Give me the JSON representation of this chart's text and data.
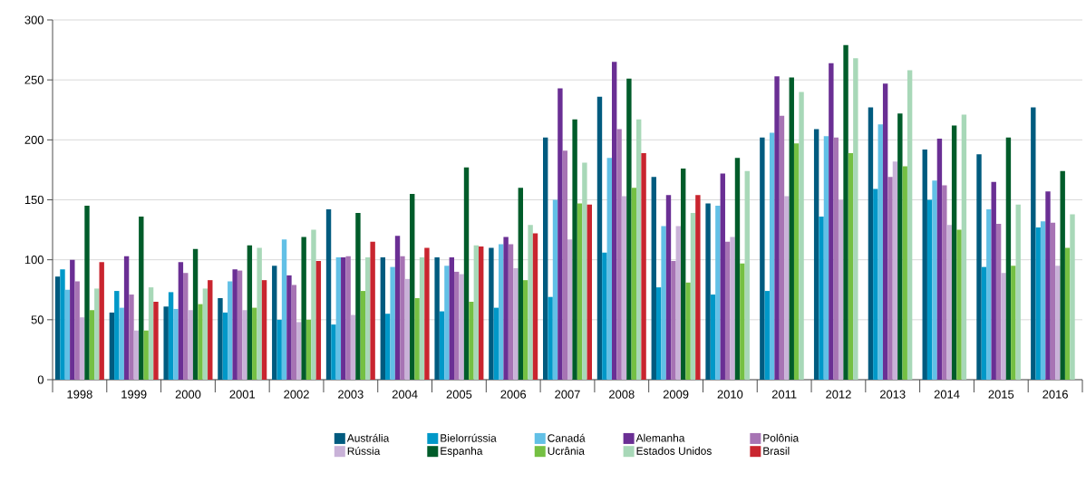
{
  "chart_data": {
    "type": "bar",
    "categories": [
      "1998",
      "1999",
      "2000",
      "2001",
      "2002",
      "2003",
      "2004",
      "2005",
      "2006",
      "2007",
      "2008",
      "2009",
      "2010",
      "2011",
      "2012",
      "2013",
      "2014",
      "2015",
      "2016"
    ],
    "series": [
      {
        "name": "Austrália",
        "color": "#005b7f",
        "values": [
          86,
          56,
          61,
          68,
          95,
          142,
          102,
          102,
          110,
          202,
          236,
          169,
          147,
          202,
          209,
          227,
          192,
          188,
          227
        ]
      },
      {
        "name": "Bielorrússia",
        "color": "#0098c8",
        "values": [
          92,
          74,
          73,
          56,
          50,
          46,
          55,
          57,
          60,
          69,
          106,
          77,
          71,
          74,
          136,
          159,
          150,
          94,
          127
        ]
      },
      {
        "name": "Canadá",
        "color": "#62c0e6",
        "values": [
          75,
          60,
          59,
          82,
          117,
          102,
          94,
          95,
          113,
          150,
          185,
          128,
          145,
          206,
          203,
          213,
          166,
          142,
          132
        ]
      },
      {
        "name": "Alemanha",
        "color": "#6a2f94",
        "values": [
          100,
          103,
          98,
          92,
          87,
          102,
          120,
          102,
          119,
          243,
          265,
          154,
          172,
          253,
          264,
          247,
          201,
          165,
          157
        ]
      },
      {
        "name": "Polônia",
        "color": "#a774b4",
        "values": [
          82,
          71,
          89,
          91,
          79,
          103,
          103,
          90,
          113,
          191,
          209,
          99,
          115,
          220,
          202,
          169,
          162,
          130,
          131
        ]
      },
      {
        "name": "Rússia",
        "color": "#c9b2d8",
        "values": [
          52,
          41,
          58,
          58,
          48,
          54,
          84,
          88,
          93,
          117,
          153,
          128,
          119,
          153,
          150,
          182,
          129,
          89,
          95
        ]
      },
      {
        "name": "Espanha",
        "color": "#005c2a",
        "values": [
          145,
          136,
          109,
          112,
          119,
          139,
          155,
          177,
          160,
          217,
          251,
          176,
          185,
          252,
          279,
          222,
          212,
          202,
          174
        ]
      },
      {
        "name": "Ucrânia",
        "color": "#75c043",
        "values": [
          58,
          41,
          63,
          60,
          50,
          74,
          68,
          65,
          83,
          147,
          160,
          81,
          97,
          197,
          189,
          178,
          125,
          95,
          110
        ]
      },
      {
        "name": "Estados Unidos",
        "color": "#a8d8b8",
        "values": [
          76,
          77,
          76,
          110,
          125,
          102,
          102,
          112,
          129,
          181,
          217,
          139,
          174,
          240,
          268,
          258,
          221,
          146,
          138
        ]
      },
      {
        "name": "Brasil",
        "color": "#c9252f",
        "values": [
          98,
          65,
          83,
          83,
          99,
          115,
          110,
          111,
          122,
          146,
          189,
          154,
          null,
          null,
          null,
          null,
          null,
          null,
          null
        ]
      }
    ],
    "ylim": [
      0,
      300
    ],
    "yticks": [
      0,
      50,
      100,
      150,
      200,
      250,
      300
    ],
    "grid": "y",
    "legend": "bottom"
  }
}
